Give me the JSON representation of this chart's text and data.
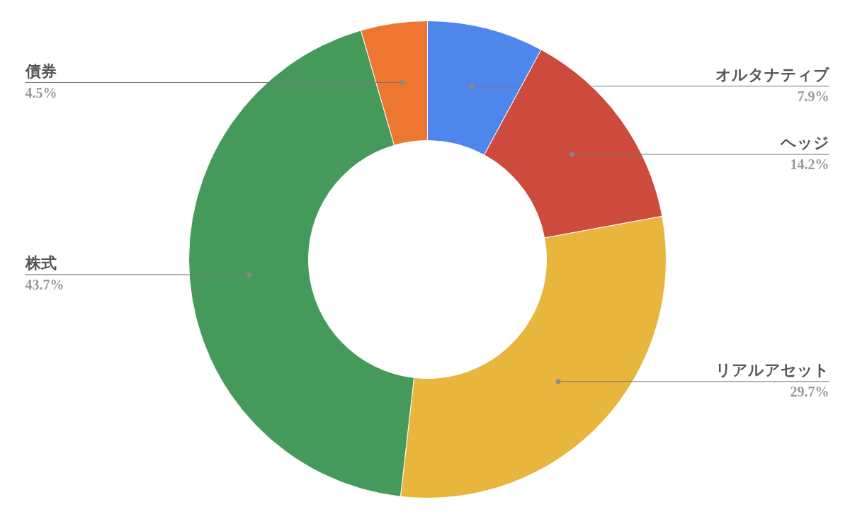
{
  "chart_data": {
    "type": "donut",
    "categories": [
      "オルタナティブ",
      "ヘッジ",
      "リアルアセット",
      "株式",
      "債券"
    ],
    "values": [
      7.9,
      14.2,
      29.7,
      43.7,
      4.5
    ],
    "colors": [
      "#4f86ec",
      "#cc4b3c",
      "#e8b53d",
      "#459a5b",
      "#ed7631"
    ],
    "value_labels": [
      "7.9%",
      "14.2%",
      "29.7%",
      "43.7%",
      "4.5%"
    ],
    "legend": false
  }
}
